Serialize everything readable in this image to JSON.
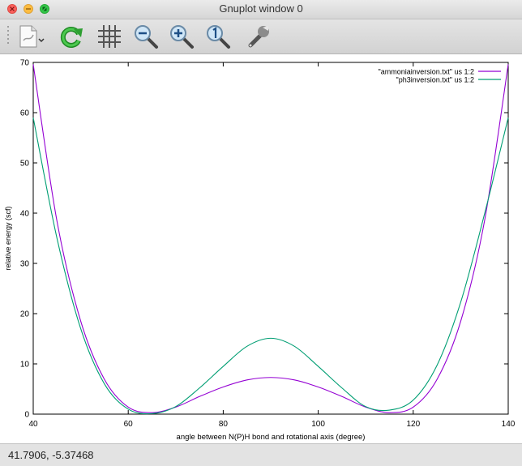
{
  "window": {
    "title": "Gnuplot window 0"
  },
  "toolbar": {
    "buttons": [
      {
        "name": "export-button",
        "icon": "document-export-icon"
      },
      {
        "name": "replot-button",
        "icon": "refresh-icon"
      },
      {
        "name": "grid-button",
        "icon": "grid-icon"
      },
      {
        "name": "zoom-out-button",
        "icon": "zoom-out-icon"
      },
      {
        "name": "zoom-in-button",
        "icon": "zoom-in-icon"
      },
      {
        "name": "zoom-reset-button",
        "icon": "zoom-reset-icon"
      },
      {
        "name": "settings-button",
        "icon": "wrench-icon"
      }
    ]
  },
  "status": {
    "coordinates": "41.7906, -5.37468"
  },
  "chart_data": {
    "type": "line",
    "title": "",
    "xlabel": "angle between N(P)H bond and rotational axis (degree)",
    "ylabel": "relative energy (scf)",
    "xlim": [
      40,
      140
    ],
    "ylim": [
      0,
      70
    ],
    "xticks": [
      40,
      60,
      80,
      100,
      120,
      140
    ],
    "yticks": [
      0,
      10,
      20,
      30,
      40,
      50,
      60,
      70
    ],
    "grid": false,
    "legend_position": "top-right",
    "series": [
      {
        "name": "\"ammoniainversion.txt\" us 1:2",
        "color": "#9400d3",
        "x": [
          40,
          45,
          50,
          55,
          60,
          65,
          70,
          75,
          80,
          85,
          90,
          95,
          100,
          105,
          110,
          115,
          120,
          125,
          130,
          135,
          140
        ],
        "y": [
          69.6,
          38.4,
          18.5,
          6.9,
          1.4,
          0.3,
          1.4,
          3.5,
          5.4,
          6.8,
          7.3,
          6.8,
          5.4,
          3.5,
          1.4,
          0.3,
          1.4,
          6.9,
          18.5,
          38.4,
          69.6
        ]
      },
      {
        "name": "\"ph3inversion.txt\" us 1:2",
        "color": "#009e73",
        "x": [
          40,
          45,
          50,
          55,
          60,
          65,
          70,
          75,
          80,
          85,
          90,
          95,
          100,
          105,
          110,
          115,
          120,
          125,
          130,
          135,
          140
        ],
        "y": [
          59.0,
          35.0,
          17.0,
          6.0,
          1.0,
          0.1,
          1.5,
          5.2,
          9.5,
          13.5,
          15.1,
          13.5,
          9.5,
          5.2,
          1.5,
          0.8,
          2.8,
          9.7,
          22.3,
          39.8,
          59.0
        ]
      }
    ]
  }
}
